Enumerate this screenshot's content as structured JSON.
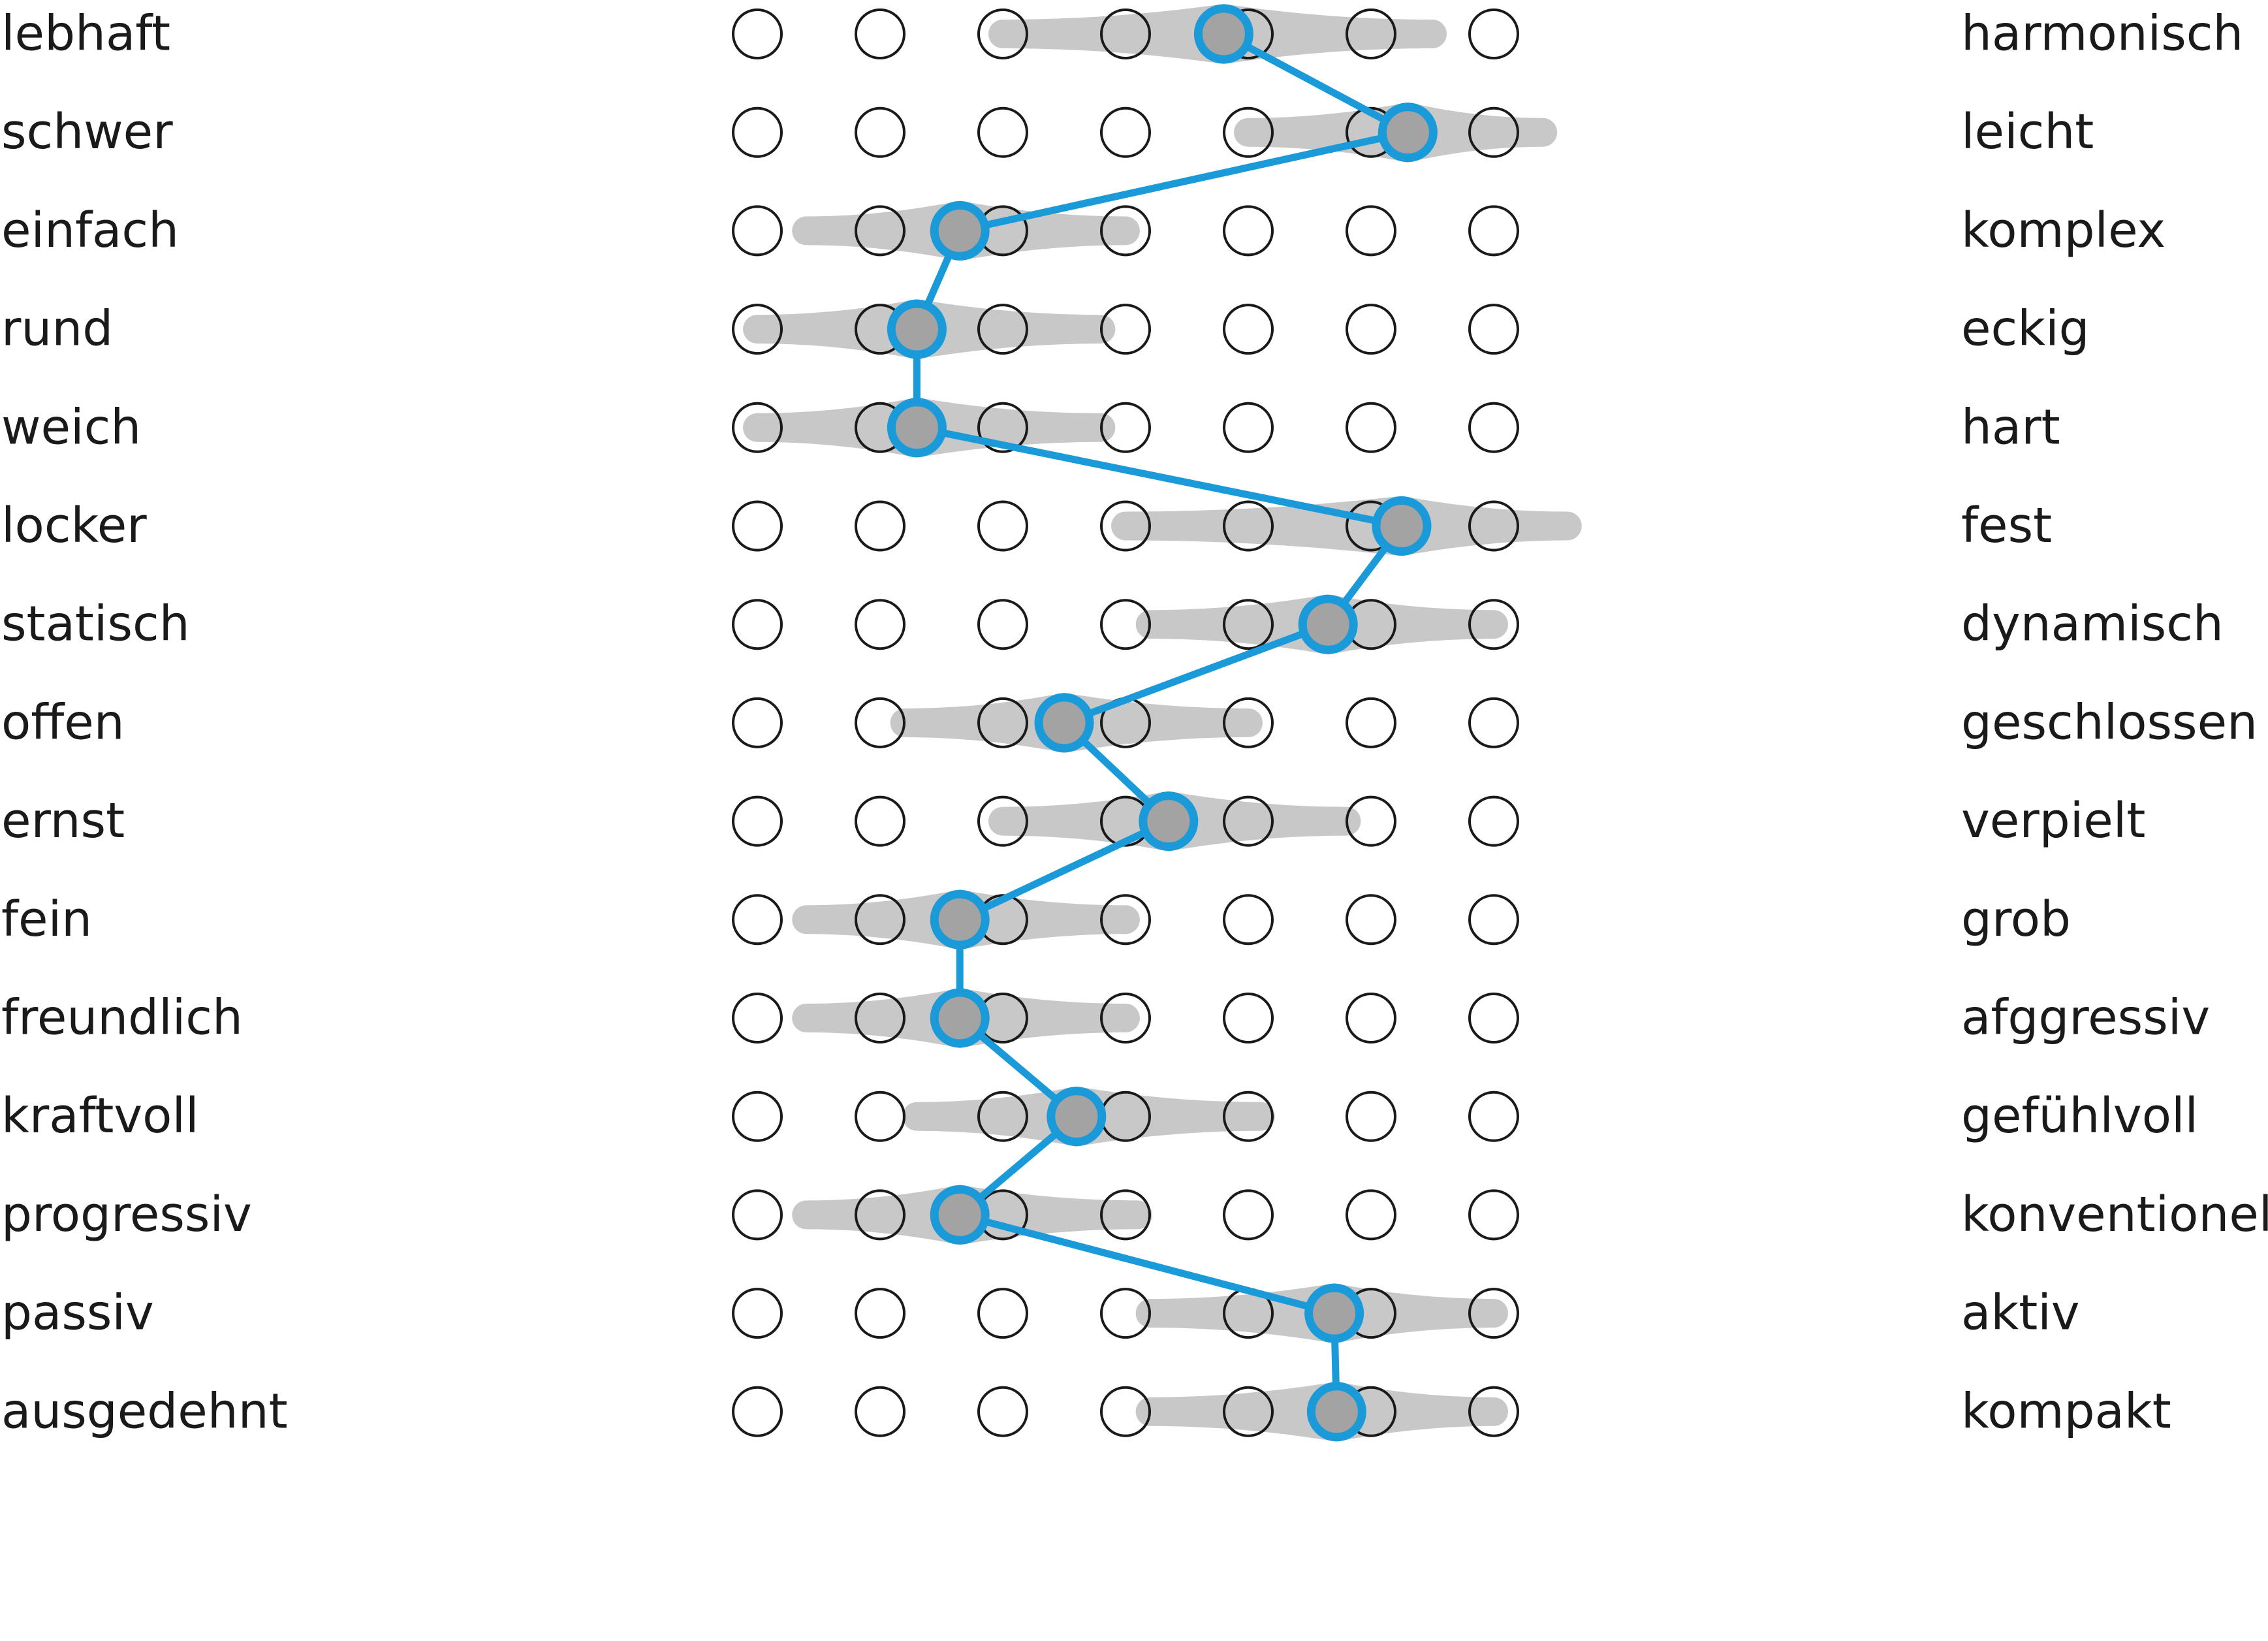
{
  "chart_data": {
    "type": "scatter",
    "subtype": "semantic-differential-profile",
    "scale_points": 7,
    "rows": [
      {
        "left": "lebhaft",
        "right": "harmonisch",
        "mean": 4.8,
        "range": [
          3.0,
          6.5
        ]
      },
      {
        "left": "schwer",
        "right": "leicht",
        "mean": 6.3,
        "range": [
          5.0,
          7.4
        ]
      },
      {
        "left": "einfach",
        "right": "komplex",
        "mean": 2.65,
        "range": [
          1.4,
          4.0
        ]
      },
      {
        "left": "rund",
        "right": "eckig",
        "mean": 2.3,
        "range": [
          1.0,
          3.8
        ]
      },
      {
        "left": "weich",
        "right": "hart",
        "mean": 2.3,
        "range": [
          1.0,
          3.8
        ]
      },
      {
        "left": "locker",
        "right": "fest",
        "mean": 6.25,
        "range": [
          4.0,
          7.6
        ]
      },
      {
        "left": "statisch",
        "right": "dynamisch",
        "mean": 5.65,
        "range": [
          4.2,
          7.0
        ]
      },
      {
        "left": "offen",
        "right": "geschlossen",
        "mean": 3.5,
        "range": [
          2.2,
          5.0
        ]
      },
      {
        "left": "ernst",
        "right": "verpielt",
        "mean": 4.35,
        "range": [
          3.0,
          5.8
        ]
      },
      {
        "left": "fein",
        "right": "grob",
        "mean": 2.65,
        "range": [
          1.4,
          4.0
        ]
      },
      {
        "left": "freundlich",
        "right": "afggressiv",
        "mean": 2.65,
        "range": [
          1.4,
          4.0
        ]
      },
      {
        "left": "kraftvoll",
        "right": "gefühlvoll",
        "mean": 3.6,
        "range": [
          2.3,
          5.1
        ]
      },
      {
        "left": "progressiv",
        "right": "konventionell",
        "mean": 2.65,
        "range": [
          1.4,
          4.1
        ]
      },
      {
        "left": "passiv",
        "right": "aktiv",
        "mean": 5.7,
        "range": [
          4.2,
          7.0
        ]
      },
      {
        "left": "ausgedehnt",
        "right": "kompakt",
        "mean": 5.72,
        "range": [
          4.2,
          7.0
        ]
      }
    ],
    "colors": {
      "profile_line": "#1a9ad9",
      "marker_fill": "#a3a3a3",
      "range_band": "#c8c8c8",
      "scale_circle_stroke": "#1a1a1a",
      "text": "#1a1a1a"
    }
  }
}
